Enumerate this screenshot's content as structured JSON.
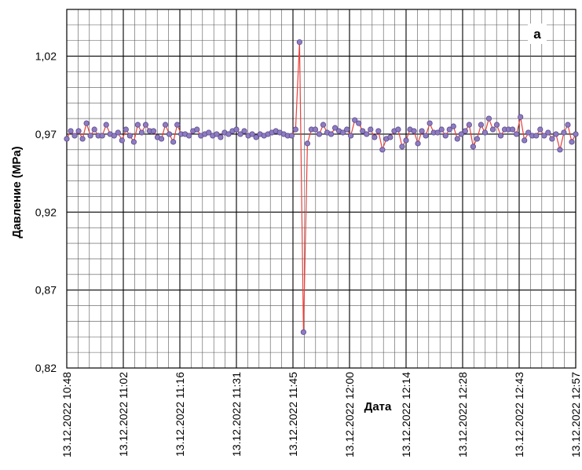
{
  "chart_data": {
    "type": "line",
    "title": "",
    "panel_label": "а",
    "xlabel": "Дата",
    "ylabel": "Давление (MPa)",
    "ylim": [
      0.82,
      1.05
    ],
    "yticks": [
      0.82,
      0.87,
      0.92,
      0.97,
      1.02
    ],
    "ytick_labels": [
      "0,82",
      "0,87",
      "0,92",
      "0,97",
      "1,02"
    ],
    "xtick_labels": [
      "13.12.2022 10:48",
      "13.12.2022 11:02",
      "13.12.2022 11:16",
      "13.12.2022 11:31",
      "13.12.2022 11:45",
      "13.12.2022 12:00",
      "13.12.2022 12:14",
      "13.12.2022 12:28",
      "13.12.2022 12:43",
      "13.12.2022 12:57"
    ],
    "xrange": [
      "13.12.2022 10:48",
      "13.12.2022 12:57"
    ],
    "grid": true,
    "colors": {
      "line": "#e8413c",
      "marker_fill": "#8e7cc3",
      "marker_stroke": "#5b4a8a",
      "grid_major": "#000000",
      "grid_minor": "#555555"
    },
    "series": [
      {
        "values": [
          0.967,
          0.972,
          0.969,
          0.972,
          0.967,
          0.977,
          0.969,
          0.973,
          0.969,
          0.969,
          0.976,
          0.97,
          0.969,
          0.971,
          0.966,
          0.973,
          0.969,
          0.965,
          0.976,
          0.971,
          0.976,
          0.972,
          0.972,
          0.968,
          0.967,
          0.976,
          0.97,
          0.965,
          0.976,
          0.97,
          0.97,
          0.969,
          0.972,
          0.973,
          0.969,
          0.97,
          0.971,
          0.969,
          0.97,
          0.968,
          0.971,
          0.97,
          0.972,
          0.973,
          0.97,
          0.972,
          0.969,
          0.97,
          0.968,
          0.97,
          0.969,
          0.97,
          0.971,
          0.972,
          0.971,
          0.97,
          0.969,
          0.969,
          0.973,
          1.029,
          0.843,
          0.964,
          0.973,
          0.973,
          0.97,
          0.976,
          0.971,
          0.97,
          0.974,
          0.972,
          0.971,
          0.973,
          0.969,
          0.979,
          0.977,
          0.972,
          0.97,
          0.973,
          0.968,
          0.972,
          0.96,
          0.967,
          0.968,
          0.972,
          0.973,
          0.962,
          0.966,
          0.973,
          0.972,
          0.964,
          0.972,
          0.969,
          0.977,
          0.971,
          0.971,
          0.973,
          0.969,
          0.973,
          0.975,
          0.967,
          0.97,
          0.972,
          0.976,
          0.962,
          0.967,
          0.976,
          0.971,
          0.98,
          0.973,
          0.976,
          0.969,
          0.973,
          0.973,
          0.973,
          0.97,
          0.981,
          0.966,
          0.971,
          0.969,
          0.969,
          0.973,
          0.969,
          0.971,
          0.967,
          0.97,
          0.96,
          0.971,
          0.976,
          0.965,
          0.97
        ]
      }
    ]
  }
}
